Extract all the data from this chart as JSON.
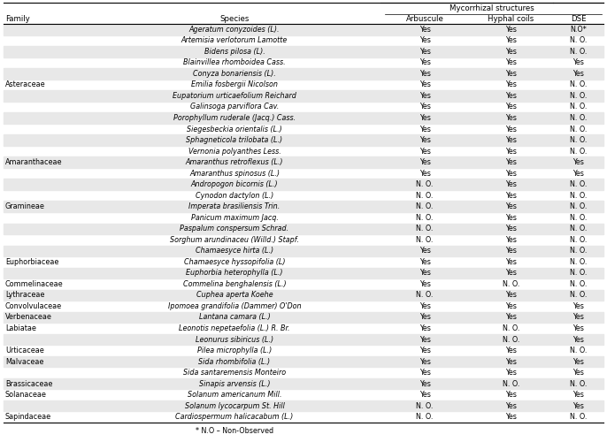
{
  "col_headers": [
    "Family",
    "Species",
    "Arbuscule",
    "Hyphal coils",
    "DSE"
  ],
  "mycorrhizal_label": "Mycorrhizal structures",
  "footnote": "* N.O – Non-Observed",
  "rows": [
    [
      "",
      "Ageratum conyzoides (L).",
      "Yes",
      "Yes",
      "N.O*"
    ],
    [
      "",
      "Artemisia verlotorum Lamotte",
      "Yes",
      "Yes",
      "N. O."
    ],
    [
      "",
      "Bidens pilosa (L).",
      "Yes",
      "Yes",
      "N. O."
    ],
    [
      "",
      "Blainvillea rhomboidea Cass.",
      "Yes",
      "Yes",
      "Yes"
    ],
    [
      "",
      "Conyza bonariensis (L).",
      "Yes",
      "Yes",
      "Yes"
    ],
    [
      "Asteraceae",
      "Emilia fosbergii Nicolson",
      "Yes",
      "Yes",
      "N. O."
    ],
    [
      "",
      "Eupatorium urticaefolium Reichard",
      "Yes",
      "Yes",
      "N. O."
    ],
    [
      "",
      "Galinsoga parviflora Cav.",
      "Yes",
      "Yes",
      "N. O."
    ],
    [
      "",
      "Porophyllum ruderale (Jacq.) Cass.",
      "Yes",
      "Yes",
      "N. O."
    ],
    [
      "",
      "Siegesbeckia orientalis (L.)",
      "Yes",
      "Yes",
      "N. O."
    ],
    [
      "",
      "Sphagneticola trilobata (L.)",
      "Yes",
      "Yes",
      "N. O."
    ],
    [
      "",
      "Vernonia polyanthes Less.",
      "Yes",
      "Yes",
      "N. O."
    ],
    [
      "Amaranthaceae",
      "Amaranthus retroflexus (L.)",
      "Yes",
      "Yes",
      "Yes"
    ],
    [
      "",
      "Amaranthus spinosus (L.)",
      "Yes",
      "Yes",
      "Yes"
    ],
    [
      "",
      "Andropogon bicornis (L.)",
      "N. O.",
      "Yes",
      "N. O."
    ],
    [
      "",
      "Cynodon dactylon (L.)",
      "N. O.",
      "Yes",
      "N. O."
    ],
    [
      "Gramineae",
      "Imperata brasiliensis Trin.",
      "N. O.",
      "Yes",
      "N. O."
    ],
    [
      "",
      "Panicum maximum Jacq.",
      "N. O.",
      "Yes",
      "N. O."
    ],
    [
      "",
      "Paspalum conspersum Schrad.",
      "N. O.",
      "Yes",
      "N. O."
    ],
    [
      "",
      "Sorghum arundinaceu (Willd.) Stapf.",
      "N. O.",
      "Yes",
      "N. O."
    ],
    [
      "",
      "Chamaesyce hirta (L.)",
      "Yes",
      "Yes",
      "N. O."
    ],
    [
      "Euphorbiaceae",
      "Chamaesyce hyssopifolia (L)",
      "Yes",
      "Yes",
      "N. O."
    ],
    [
      "",
      "Euphorbia heterophylla (L.)",
      "Yes",
      "Yes",
      "N. O."
    ],
    [
      "Commelinaceae",
      "Commelina benghalensis (L.)",
      "Yes",
      "N. O.",
      "N. O."
    ],
    [
      "Lythraceae",
      "Cuphea aperta Koehe",
      "N. O.",
      "Yes",
      "N. O."
    ],
    [
      "Convolvulaceae",
      "Ipomoea grandifolia (Dammer) O'Don",
      "Yes",
      "Yes",
      "Yes"
    ],
    [
      "Verbenaceae",
      "Lantana camara (L.)",
      "Yes",
      "Yes",
      "Yes"
    ],
    [
      "Labiatae",
      "Leonotis nepetaefolia (L.) R. Br.",
      "Yes",
      "N. O.",
      "Yes"
    ],
    [
      "",
      "Leonurus sibiricus (L.)",
      "Yes",
      "N. O.",
      "Yes"
    ],
    [
      "Urticaceae",
      "Pilea microphylla (L.)",
      "Yes",
      "Yes",
      "N. O."
    ],
    [
      "Malvaceae",
      "Sida rhombifolia (L.)",
      "Yes",
      "Yes",
      "Yes"
    ],
    [
      "",
      "Sida santaremensis Monteiro",
      "Yes",
      "Yes",
      "Yes"
    ],
    [
      "Brassicaceae",
      "Sinapis arvensis (L.)",
      "Yes",
      "N. O.",
      "N. O."
    ],
    [
      "Solanaceae",
      "Solanum americanum Mill.",
      "Yes",
      "Yes",
      "Yes"
    ],
    [
      "",
      "Solanum lycocarpum St. Hill",
      "N. O.",
      "Yes",
      "Yes"
    ],
    [
      "Sapindaceae",
      "Cardiospermum halicacabum (L.)",
      "N. O.",
      "Yes",
      "N. O."
    ]
  ],
  "shaded_rows": [
    0,
    2,
    4,
    6,
    8,
    10,
    12,
    14,
    16,
    18,
    20,
    22,
    24,
    26,
    28,
    30,
    32,
    34
  ],
  "shade_color": "#e8e8e8",
  "bg_color": "#ffffff",
  "text_color": "#000000",
  "font_size": 5.8,
  "header_font_size": 6.2
}
